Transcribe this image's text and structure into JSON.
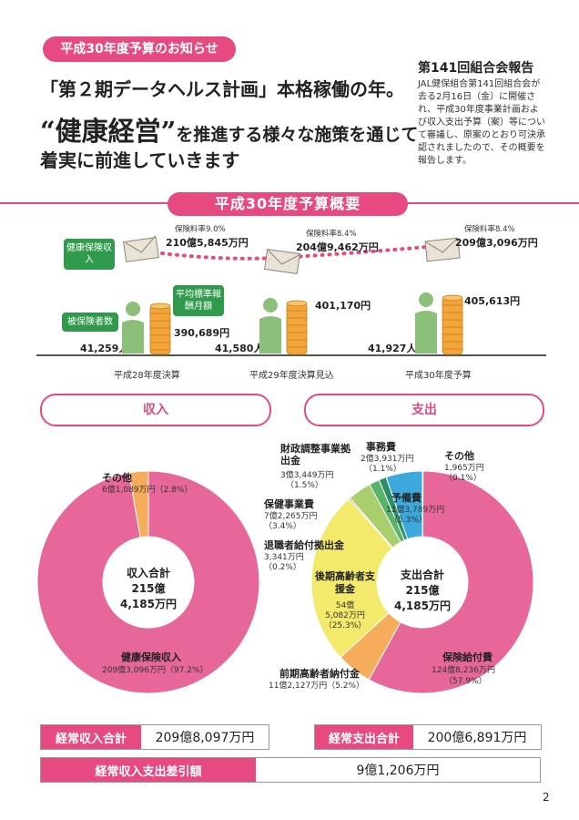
{
  "header": {
    "notice_pill": "平成30年度予算のお知らせ",
    "headline1": "「第２期データヘルス計画」本格稼働の年。",
    "headline2_big": "“健康経営”",
    "headline2_rest": "を推進する様々な施策を通じて",
    "headline3": "着実に前進していきます"
  },
  "report": {
    "title": "第141回組合会報告",
    "body": "JAL健保組合第141回組合会が去る2月16日（金）に開催され、平成30年度事業計画および収入支出予算（案）等について審議し、原案のとおり可決承認されましたので、その概要を報告します。"
  },
  "overview": {
    "title": "平成30年度予算概要",
    "label_income": "健康保険収入",
    "label_insured": "被保険者数",
    "label_avg": "平均標準報酬月額",
    "years": [
      {
        "year": "平成28年度決算",
        "rate": "保険料率9.0%",
        "income": "210億5,845万円",
        "avg": "390,689円",
        "insured": "41,259人"
      },
      {
        "year": "平成29年度決算見込",
        "rate": "保険料率8.4%",
        "income": "204億9,462万円",
        "avg": "401,170円",
        "insured": "41,580人"
      },
      {
        "year": "平成30年度予算",
        "rate": "保険料率8.4%",
        "income": "209億3,096万円",
        "avg": "405,613円",
        "insured": "41,927人"
      }
    ]
  },
  "revenue": {
    "pill": "収入",
    "center": [
      "収入合計",
      "215億",
      "4,185万円"
    ],
    "items": [
      {
        "label": "健康保険収入",
        "value": "209億3,096万円（97.2%）",
        "pct": 97.2,
        "color": "#e8679a"
      },
      {
        "label": "その他",
        "value": "6億1,089万円（2.8%）",
        "pct": 2.8,
        "color": "#f5ad5b"
      }
    ]
  },
  "expense": {
    "pill": "支出",
    "center": [
      "支出合計",
      "215億",
      "4,185万円"
    ],
    "items": [
      {
        "label": "保険給付費",
        "value1": "124億8,236万円",
        "value2": "（57.9%）",
        "pct": 57.9,
        "color": "#e8679a"
      },
      {
        "label": "前期高齢者納付金",
        "value1": "11億2,127万円（5.2%）",
        "value2": "",
        "pct": 5.2,
        "color": "#f5ad5b"
      },
      {
        "label": "後期高齢者支援金",
        "value1": "54億",
        "value2": "5,082万円",
        "value3": "（25.3%）",
        "pct": 25.3,
        "color": "#f3ea6c"
      },
      {
        "label": "退職者給付拠出金",
        "value1": "3,341万円",
        "value2": "（0.2%）",
        "pct": 0.2,
        "color": "#b33a88"
      },
      {
        "label": "保健事業費",
        "value1": "7億2,265万円",
        "value2": "（3.4%）",
        "pct": 3.4,
        "color": "#a9cf6c"
      },
      {
        "label": "財政調整事業拠出金",
        "value1": "3億3,449万円",
        "value2": "（1.5%）",
        "pct": 1.5,
        "color": "#59b36a"
      },
      {
        "label": "事務費",
        "value1": "2億3,931万円",
        "value2": "（1.1%）",
        "pct": 1.1,
        "color": "#2a8f66"
      },
      {
        "label": "予備費",
        "value1": "11億3,789万円",
        "value2": "（5.3%）",
        "pct": 5.3,
        "color": "#3ba9dc"
      },
      {
        "label": "その他",
        "value1": "1,965万円",
        "value2": "（0.1%）",
        "pct": 0.1,
        "color": "#1f4f9a"
      }
    ]
  },
  "totals": {
    "rev_label": "経常収入合計",
    "rev_value": "209億8,097万円",
    "exp_label": "経常支出合計",
    "exp_value": "200億6,891万円",
    "diff_label": "経常収入支出差引額",
    "diff_value": "9億1,206万円"
  },
  "page_number": "2"
}
